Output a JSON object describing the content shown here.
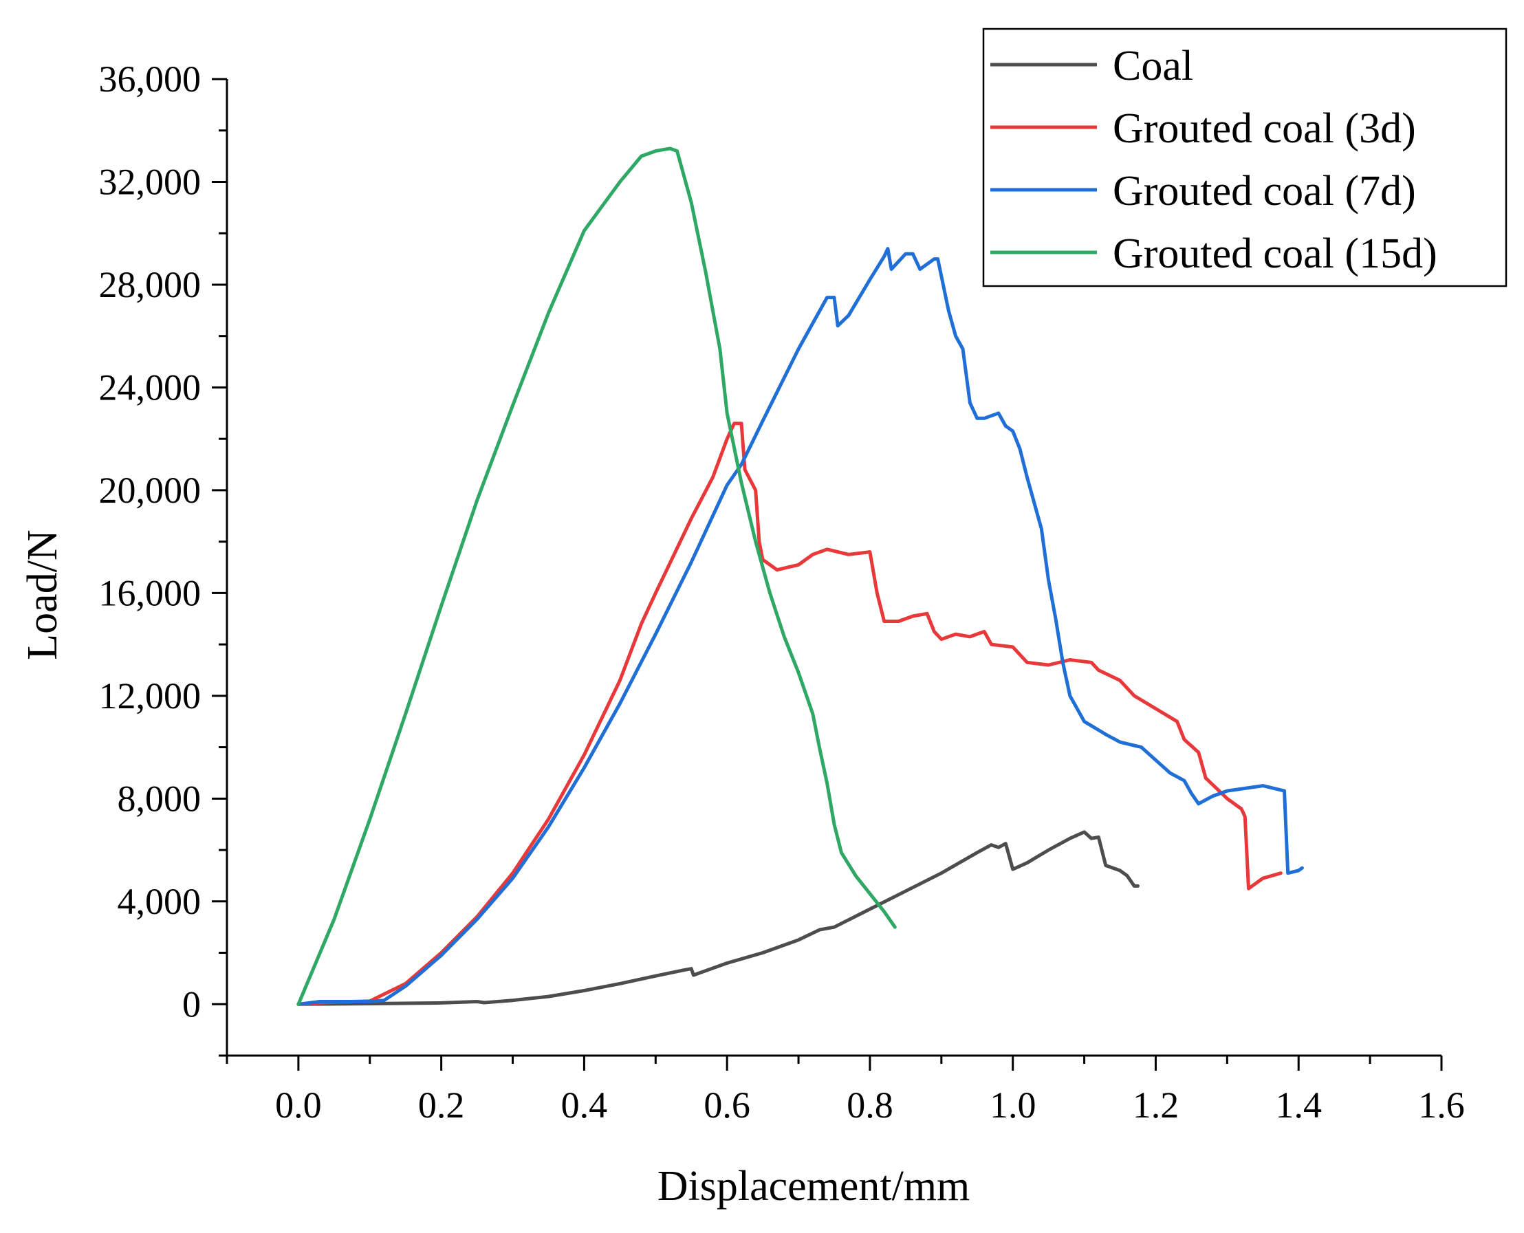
{
  "chart_data": {
    "type": "line",
    "xlabel": "Displacement/mm",
    "ylabel": "Load/N",
    "xlim": [
      -0.1,
      1.6
    ],
    "ylim": [
      -2000,
      36000
    ],
    "x_ticks": [
      0.0,
      0.2,
      0.4,
      0.6,
      0.8,
      1.0,
      1.2,
      1.4,
      1.6
    ],
    "x_tick_labels": [
      "0.0",
      "0.2",
      "0.4",
      "0.6",
      "0.8",
      "1.0",
      "1.2",
      "1.4",
      "1.6"
    ],
    "y_ticks": [
      0,
      4000,
      8000,
      12000,
      16000,
      20000,
      24000,
      28000,
      32000,
      36000
    ],
    "y_tick_labels": [
      "0",
      "4,000",
      "8,000",
      "12,000",
      "16,000",
      "20,000",
      "24,000",
      "28,000",
      "32,000",
      "36,000"
    ],
    "grid": false,
    "legend_position": "top-right",
    "series": [
      {
        "name": "Coal",
        "color": "#4d4d4d",
        "points": [
          [
            0.0,
            0
          ],
          [
            0.1,
            20
          ],
          [
            0.2,
            50
          ],
          [
            0.25,
            100
          ],
          [
            0.26,
            60
          ],
          [
            0.3,
            150
          ],
          [
            0.35,
            300
          ],
          [
            0.4,
            530
          ],
          [
            0.45,
            800
          ],
          [
            0.5,
            1100
          ],
          [
            0.54,
            1330
          ],
          [
            0.55,
            1380
          ],
          [
            0.553,
            1130
          ],
          [
            0.6,
            1600
          ],
          [
            0.65,
            2000
          ],
          [
            0.7,
            2500
          ],
          [
            0.73,
            2900
          ],
          [
            0.75,
            3000
          ],
          [
            0.8,
            3700
          ],
          [
            0.85,
            4400
          ],
          [
            0.9,
            5100
          ],
          [
            0.95,
            5900
          ],
          [
            0.97,
            6200
          ],
          [
            0.98,
            6100
          ],
          [
            0.99,
            6250
          ],
          [
            1.0,
            5250
          ],
          [
            1.02,
            5500
          ],
          [
            1.05,
            6000
          ],
          [
            1.08,
            6450
          ],
          [
            1.1,
            6700
          ],
          [
            1.11,
            6450
          ],
          [
            1.12,
            6500
          ],
          [
            1.13,
            5400
          ],
          [
            1.15,
            5200
          ],
          [
            1.16,
            5000
          ],
          [
            1.17,
            4600
          ],
          [
            1.175,
            4600
          ]
        ]
      },
      {
        "name": "Grouted coal (3d)",
        "color": "#e8383a",
        "points": [
          [
            0.0,
            0
          ],
          [
            0.05,
            80
          ],
          [
            0.1,
            120
          ],
          [
            0.15,
            800
          ],
          [
            0.2,
            2000
          ],
          [
            0.25,
            3400
          ],
          [
            0.3,
            5100
          ],
          [
            0.35,
            7200
          ],
          [
            0.4,
            9700
          ],
          [
            0.45,
            12600
          ],
          [
            0.48,
            14800
          ],
          [
            0.5,
            16000
          ],
          [
            0.55,
            18900
          ],
          [
            0.58,
            20500
          ],
          [
            0.6,
            22000
          ],
          [
            0.61,
            22600
          ],
          [
            0.62,
            22600
          ],
          [
            0.625,
            20800
          ],
          [
            0.64,
            20000
          ],
          [
            0.645,
            18000
          ],
          [
            0.65,
            17300
          ],
          [
            0.67,
            16900
          ],
          [
            0.7,
            17100
          ],
          [
            0.72,
            17500
          ],
          [
            0.74,
            17700
          ],
          [
            0.77,
            17500
          ],
          [
            0.8,
            17600
          ],
          [
            0.81,
            16000
          ],
          [
            0.82,
            14900
          ],
          [
            0.84,
            14900
          ],
          [
            0.86,
            15100
          ],
          [
            0.88,
            15200
          ],
          [
            0.89,
            14500
          ],
          [
            0.9,
            14200
          ],
          [
            0.92,
            14400
          ],
          [
            0.94,
            14300
          ],
          [
            0.96,
            14500
          ],
          [
            0.97,
            14000
          ],
          [
            1.0,
            13900
          ],
          [
            1.02,
            13300
          ],
          [
            1.05,
            13200
          ],
          [
            1.08,
            13400
          ],
          [
            1.11,
            13300
          ],
          [
            1.12,
            13000
          ],
          [
            1.15,
            12600
          ],
          [
            1.17,
            12000
          ],
          [
            1.2,
            11500
          ],
          [
            1.23,
            11000
          ],
          [
            1.24,
            10300
          ],
          [
            1.26,
            9800
          ],
          [
            1.27,
            8800
          ],
          [
            1.3,
            8000
          ],
          [
            1.32,
            7600
          ],
          [
            1.325,
            7300
          ],
          [
            1.33,
            4500
          ],
          [
            1.35,
            4900
          ],
          [
            1.375,
            5100
          ]
        ]
      },
      {
        "name": "Grouted coal (7d)",
        "color": "#1f6fd6",
        "points": [
          [
            0.0,
            0
          ],
          [
            0.03,
            100
          ],
          [
            0.1,
            100
          ],
          [
            0.12,
            150
          ],
          [
            0.15,
            700
          ],
          [
            0.2,
            1900
          ],
          [
            0.25,
            3300
          ],
          [
            0.3,
            4900
          ],
          [
            0.35,
            6900
          ],
          [
            0.4,
            9200
          ],
          [
            0.45,
            11700
          ],
          [
            0.5,
            14400
          ],
          [
            0.55,
            17200
          ],
          [
            0.6,
            20200
          ],
          [
            0.62,
            21000
          ],
          [
            0.65,
            22700
          ],
          [
            0.7,
            25500
          ],
          [
            0.74,
            27500
          ],
          [
            0.75,
            27500
          ],
          [
            0.755,
            26400
          ],
          [
            0.77,
            26800
          ],
          [
            0.8,
            28200
          ],
          [
            0.82,
            29100
          ],
          [
            0.825,
            29400
          ],
          [
            0.83,
            28600
          ],
          [
            0.85,
            29200
          ],
          [
            0.86,
            29200
          ],
          [
            0.87,
            28600
          ],
          [
            0.89,
            29000
          ],
          [
            0.895,
            29000
          ],
          [
            0.91,
            27000
          ],
          [
            0.92,
            26000
          ],
          [
            0.93,
            25500
          ],
          [
            0.94,
            23400
          ],
          [
            0.95,
            22800
          ],
          [
            0.96,
            22800
          ],
          [
            0.98,
            23000
          ],
          [
            0.99,
            22500
          ],
          [
            1.0,
            22300
          ],
          [
            1.01,
            21600
          ],
          [
            1.02,
            20500
          ],
          [
            1.04,
            18500
          ],
          [
            1.05,
            16500
          ],
          [
            1.06,
            15000
          ],
          [
            1.07,
            13300
          ],
          [
            1.08,
            12000
          ],
          [
            1.1,
            11000
          ],
          [
            1.13,
            10500
          ],
          [
            1.15,
            10200
          ],
          [
            1.18,
            10000
          ],
          [
            1.2,
            9500
          ],
          [
            1.22,
            9000
          ],
          [
            1.24,
            8700
          ],
          [
            1.25,
            8200
          ],
          [
            1.26,
            7800
          ],
          [
            1.28,
            8100
          ],
          [
            1.3,
            8300
          ],
          [
            1.35,
            8500
          ],
          [
            1.38,
            8300
          ],
          [
            1.385,
            5100
          ],
          [
            1.4,
            5200
          ],
          [
            1.405,
            5300
          ]
        ]
      },
      {
        "name": "Grouted coal (15d)",
        "color": "#2ea864",
        "points": [
          [
            0.0,
            0
          ],
          [
            0.05,
            3300
          ],
          [
            0.1,
            7200
          ],
          [
            0.15,
            11300
          ],
          [
            0.2,
            15500
          ],
          [
            0.25,
            19600
          ],
          [
            0.3,
            23300
          ],
          [
            0.35,
            26900
          ],
          [
            0.4,
            30100
          ],
          [
            0.45,
            32000
          ],
          [
            0.48,
            33000
          ],
          [
            0.5,
            33200
          ],
          [
            0.52,
            33300
          ],
          [
            0.53,
            33200
          ],
          [
            0.55,
            31200
          ],
          [
            0.57,
            28500
          ],
          [
            0.59,
            25500
          ],
          [
            0.6,
            23000
          ],
          [
            0.62,
            20300
          ],
          [
            0.64,
            18000
          ],
          [
            0.66,
            16000
          ],
          [
            0.68,
            14300
          ],
          [
            0.7,
            12900
          ],
          [
            0.72,
            11300
          ],
          [
            0.73,
            9900
          ],
          [
            0.74,
            8600
          ],
          [
            0.75,
            7000
          ],
          [
            0.76,
            5900
          ],
          [
            0.78,
            5000
          ],
          [
            0.8,
            4300
          ],
          [
            0.82,
            3600
          ],
          [
            0.835,
            3000
          ]
        ]
      }
    ]
  }
}
